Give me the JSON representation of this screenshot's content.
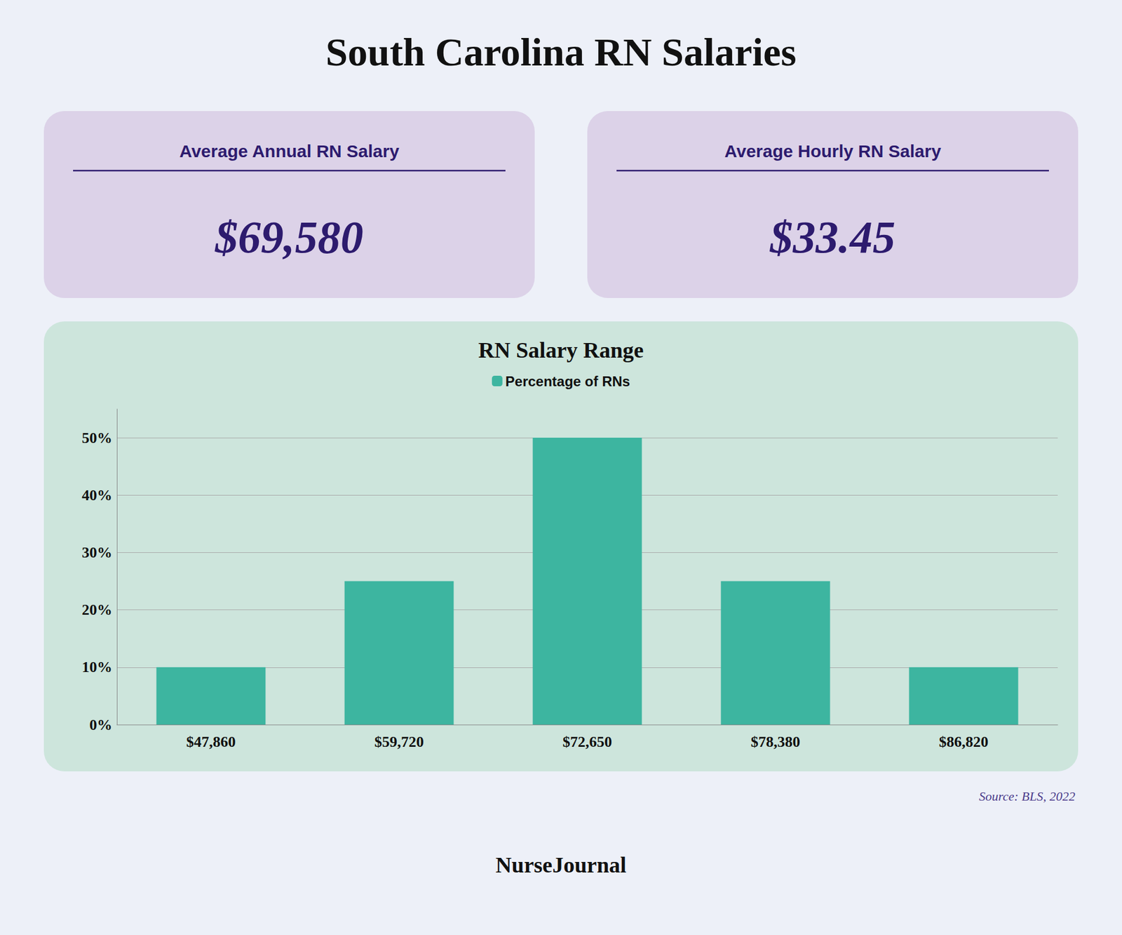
{
  "chart_data": {
    "type": "bar",
    "title": "South Carolina RN Salaries",
    "subtitle": "RN Salary Range",
    "categories": [
      "$47,860",
      "$59,720",
      "$72,650",
      "$78,380",
      "$86,820"
    ],
    "series": [
      {
        "name": "Percentage of RNs",
        "color": "#3db5a0",
        "values": [
          10,
          25,
          50,
          25,
          10
        ]
      }
    ],
    "ylim": [
      0,
      55
    ],
    "yticks": [
      {
        "value": 0,
        "label": "0%"
      },
      {
        "value": 10,
        "label": "10%"
      },
      {
        "value": 20,
        "label": "20%"
      },
      {
        "value": 30,
        "label": "30%"
      },
      {
        "value": 40,
        "label": "40%"
      },
      {
        "value": 50,
        "label": "50%"
      }
    ],
    "grid": true,
    "legend": "top",
    "annotations": [
      "Average Annual RN Salary",
      "$69,580",
      "Average Hourly RN Salary",
      "$33.45",
      "Source: BLS, 2022",
      "NurseJournal"
    ]
  }
}
